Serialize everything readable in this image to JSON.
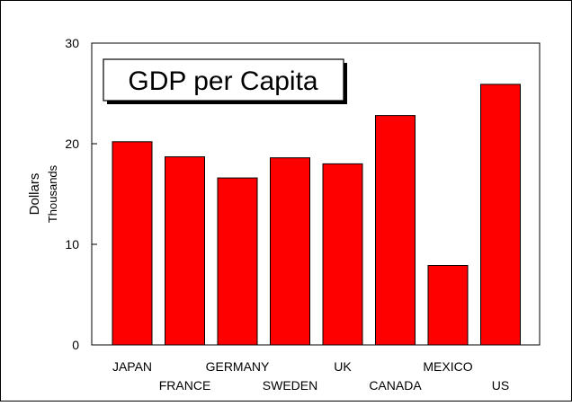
{
  "chart_data": {
    "type": "bar",
    "title": "GDP per Capita",
    "ylabel": "Dollars",
    "ylabel_units": "Thousands",
    "xlabel": "",
    "categories": [
      "JAPAN",
      "FRANCE",
      "GERMANY",
      "SWEDEN",
      "UK",
      "CANADA",
      "MEXICO",
      "US"
    ],
    "values": [
      20.2,
      18.7,
      16.6,
      18.6,
      18.0,
      22.8,
      7.9,
      25.9
    ],
    "ylim": [
      0,
      30
    ],
    "yticks": [
      0,
      10,
      20,
      30
    ],
    "grid": false,
    "legend": "none",
    "bar_color": "#ff0000",
    "bar_edge_color": "#000000"
  }
}
